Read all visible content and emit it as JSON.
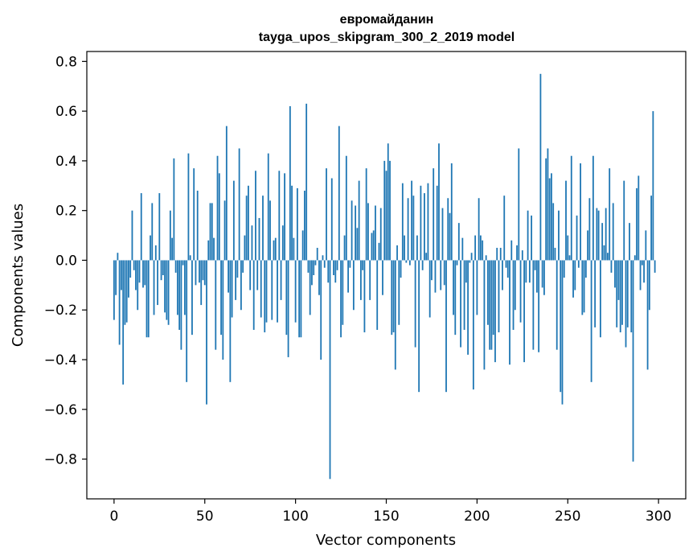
{
  "chart_data": {
    "type": "bar",
    "title": "евромайданин",
    "subtitle": "tayga_upos_skipgram_300_2_2019 model",
    "xlabel": "Vector components",
    "ylabel": "Components values",
    "xlim": [
      -15,
      315
    ],
    "ylim": [
      -0.96,
      0.84
    ],
    "xticks": [
      0,
      50,
      100,
      150,
      200,
      250,
      300
    ],
    "xtick_labels": [
      "0",
      "50",
      "100",
      "150",
      "200",
      "250",
      "300"
    ],
    "yticks": [
      -0.8,
      -0.6,
      -0.4,
      -0.2,
      0.0,
      0.2,
      0.4,
      0.6,
      0.8
    ],
    "ytick_labels": [
      "−0.8",
      "−0.6",
      "−0.4",
      "−0.2",
      "0.0",
      "0.2",
      "0.4",
      "0.6",
      "0.8"
    ],
    "grid": false,
    "color": "#1f77b4",
    "values": [
      -0.24,
      -0.14,
      0.03,
      -0.34,
      -0.12,
      -0.5,
      -0.26,
      -0.25,
      -0.15,
      -0.07,
      0.2,
      -0.04,
      -0.12,
      -0.2,
      -0.09,
      0.27,
      -0.11,
      -0.1,
      -0.31,
      -0.31,
      0.1,
      0.23,
      -0.22,
      0.06,
      -0.18,
      0.27,
      -0.08,
      -0.06,
      -0.21,
      -0.24,
      -0.26,
      0.2,
      0.09,
      0.41,
      -0.05,
      -0.22,
      -0.28,
      -0.36,
      -0.02,
      -0.22,
      -0.49,
      0.43,
      0.02,
      -0.3,
      0.37,
      -0.1,
      0.28,
      -0.09,
      -0.18,
      -0.08,
      -0.1,
      -0.58,
      0.08,
      0.23,
      0.23,
      0.09,
      -0.36,
      0.42,
      0.35,
      -0.3,
      -0.4,
      0.24,
      0.54,
      -0.13,
      -0.49,
      -0.23,
      0.32,
      -0.16,
      -0.07,
      0.45,
      -0.2,
      -0.05,
      0.1,
      0.26,
      0.3,
      -0.12,
      0.14,
      -0.28,
      0.36,
      -0.12,
      0.17,
      -0.23,
      0.26,
      -0.29,
      -0.25,
      0.43,
      0.24,
      -0.24,
      0.08,
      0.09,
      -0.25,
      0.36,
      -0.16,
      0.14,
      0.35,
      -0.3,
      -0.39,
      0.62,
      0.3,
      0.09,
      -0.25,
      0.29,
      -0.31,
      -0.31,
      0.12,
      0.28,
      0.63,
      -0.05,
      -0.22,
      -0.1,
      -0.06,
      -0.02,
      0.05,
      -0.14,
      -0.4,
      0.02,
      -0.03,
      0.37,
      -0.09,
      -0.88,
      0.33,
      -0.06,
      -0.09,
      -0.04,
      0.54,
      -0.31,
      -0.26,
      0.1,
      0.42,
      -0.13,
      -0.03,
      0.24,
      -0.2,
      0.22,
      0.13,
      0.32,
      -0.16,
      -0.04,
      -0.29,
      0.37,
      0.23,
      -0.16,
      0.11,
      0.12,
      0.22,
      -0.28,
      0.07,
      0.21,
      -0.14,
      0.4,
      0.36,
      0.47,
      0.4,
      -0.3,
      -0.29,
      -0.44,
      0.06,
      -0.26,
      -0.07,
      0.31,
      0.1,
      -0.01,
      0.25,
      -0.02,
      0.32,
      0.26,
      -0.35,
      0.1,
      -0.53,
      0.3,
      -0.04,
      0.27,
      0.03,
      0.31,
      -0.23,
      -0.08,
      0.37,
      -0.13,
      0.3,
      0.47,
      -0.12,
      0.21,
      -0.1,
      -0.53,
      0.25,
      0.19,
      0.39,
      -0.22,
      -0.3,
      -0.02,
      0.15,
      -0.35,
      0.09,
      -0.28,
      -0.09,
      -0.38,
      -0.01,
      0.03,
      -0.52,
      0.1,
      -0.22,
      0.25,
      0.1,
      0.08,
      -0.44,
      0.02,
      -0.26,
      -0.36,
      -0.36,
      -0.3,
      -0.41,
      0.05,
      -0.29,
      0.05,
      -0.12,
      0.26,
      -0.03,
      -0.07,
      -0.42,
      0.08,
      -0.28,
      -0.2,
      0.06,
      0.45,
      -0.25,
      0.04,
      -0.41,
      -0.09,
      0.2,
      -0.09,
      0.18,
      -0.36,
      -0.04,
      -0.13,
      -0.37,
      0.75,
      -0.11,
      -0.14,
      0.41,
      0.45,
      0.33,
      0.35,
      0.23,
      0.05,
      -0.36,
      0.2,
      -0.53,
      -0.58,
      -0.07,
      0.32,
      0.1,
      0.02,
      0.42,
      -0.15,
      -0.12,
      0.18,
      -0.03,
      0.39,
      -0.22,
      -0.21,
      -0.07,
      0.12,
      0.25,
      -0.49,
      0.42,
      -0.27,
      0.21,
      0.2,
      -0.31,
      0.15,
      0.06,
      0.21,
      0.03,
      0.37,
      -0.05,
      0.23,
      -0.11,
      -0.27,
      -0.16,
      -0.29,
      -0.26,
      0.32,
      -0.35,
      -0.27,
      0.15,
      -0.29,
      -0.81,
      0.02,
      0.29,
      0.34,
      -0.12,
      -0.02,
      -0.09,
      0.12,
      -0.44,
      -0.2,
      0.26,
      0.6,
      -0.05
    ]
  }
}
